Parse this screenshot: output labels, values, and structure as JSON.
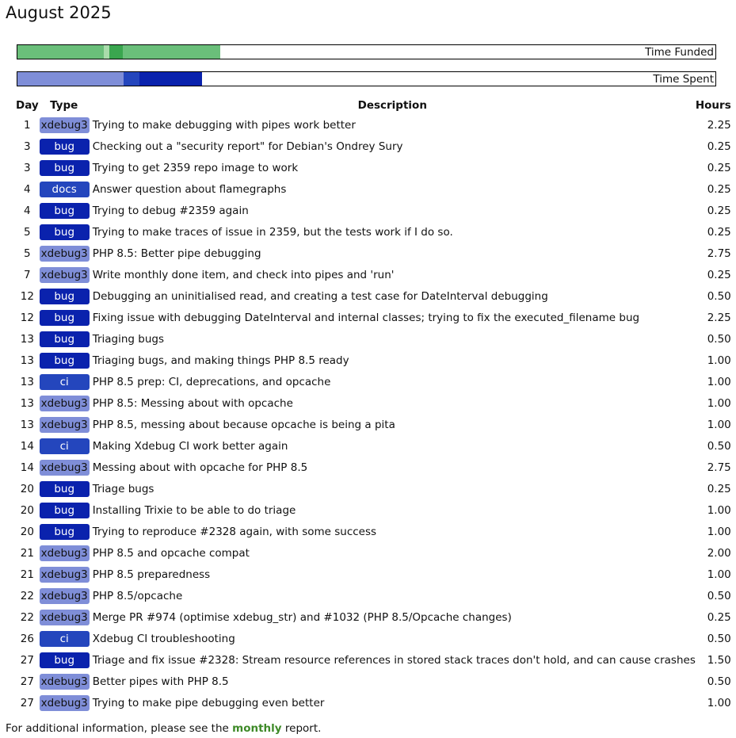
{
  "title": "August 2025",
  "bars": {
    "funded_label": "Time Funded",
    "spent_label": "Time Spent"
  },
  "table": {
    "header": [
      "Day",
      "Type",
      "Description",
      "Hours"
    ],
    "rows": [
      [
        "1",
        "xdebug3",
        "Trying to make debugging with pipes work better",
        "2.25"
      ],
      [
        "3",
        "bug",
        "Checking out a \"security report\" for Debian's Ondrey Sury",
        "0.25"
      ],
      [
        "3",
        "bug",
        "Trying to get 2359 repo image to work",
        "0.25"
      ],
      [
        "4",
        "docs",
        "Answer question about flamegraphs",
        "0.25"
      ],
      [
        "4",
        "bug",
        "Trying to debug #2359 again",
        "0.25"
      ],
      [
        "5",
        "bug",
        "Trying to make traces of issue in 2359, but the tests work if I do so.",
        "0.25"
      ],
      [
        "5",
        "xdebug3",
        "PHP 8.5: Better pipe debugging",
        "2.75"
      ],
      [
        "7",
        "xdebug3",
        "Write monthly done item, and check into pipes and 'run'",
        "0.25"
      ],
      [
        "12",
        "bug",
        "Debugging an uninitialised read, and creating a test case for DateInterval debugging",
        "0.50"
      ],
      [
        "12",
        "bug",
        "Fixing issue with debugging DateInterval and internal classes; trying to fix the executed_filename bug",
        "2.25"
      ],
      [
        "13",
        "bug",
        "Triaging bugs",
        "0.50"
      ],
      [
        "13",
        "bug",
        "Triaging bugs, and making things PHP 8.5 ready",
        "1.00"
      ],
      [
        "13",
        "ci",
        "PHP 8.5 prep: CI, deprecations, and opcache",
        "1.00"
      ],
      [
        "13",
        "xdebug3",
        "PHP 8.5: Messing about with opcache",
        "1.00"
      ],
      [
        "13",
        "xdebug3",
        "PHP 8.5, messing about because opcache is being a pita",
        "1.00"
      ],
      [
        "14",
        "ci",
        "Making Xdebug CI work better again",
        "0.50"
      ],
      [
        "14",
        "xdebug3",
        "Messing about with opcache for PHP 8.5",
        "2.75"
      ],
      [
        "20",
        "bug",
        "Triage bugs",
        "0.25"
      ],
      [
        "20",
        "bug",
        "Installing Trixie to be able to do triage",
        "1.00"
      ],
      [
        "20",
        "bug",
        "Trying to reproduce #2328 again, with some success",
        "1.00"
      ],
      [
        "21",
        "xdebug3",
        "PHP 8.5 and opcache compat",
        "2.00"
      ],
      [
        "21",
        "xdebug3",
        "PHP 8.5 preparedness",
        "1.00"
      ],
      [
        "22",
        "xdebug3",
        "PHP 8.5/opcache",
        "0.50"
      ],
      [
        "22",
        "xdebug3",
        "Merge PR #974 (optimise xdebug_str) and #1032 (PHP 8.5/Opcache changes)",
        "0.25"
      ],
      [
        "26",
        "ci",
        "Xdebug CI troubleshooting",
        "0.50"
      ],
      [
        "27",
        "bug",
        "Triage and fix issue #2328: Stream resource references in stored stack traces don't hold, and can cause crashes",
        "1.50"
      ],
      [
        "27",
        "xdebug3",
        "Better pipes with PHP 8.5",
        "0.50"
      ],
      [
        "27",
        "xdebug3",
        "Trying to make pipe debugging even better",
        "1.00"
      ]
    ]
  },
  "footer": {
    "prefix": "For additional information, please see the ",
    "link": "monthly",
    "suffix": " report."
  }
}
